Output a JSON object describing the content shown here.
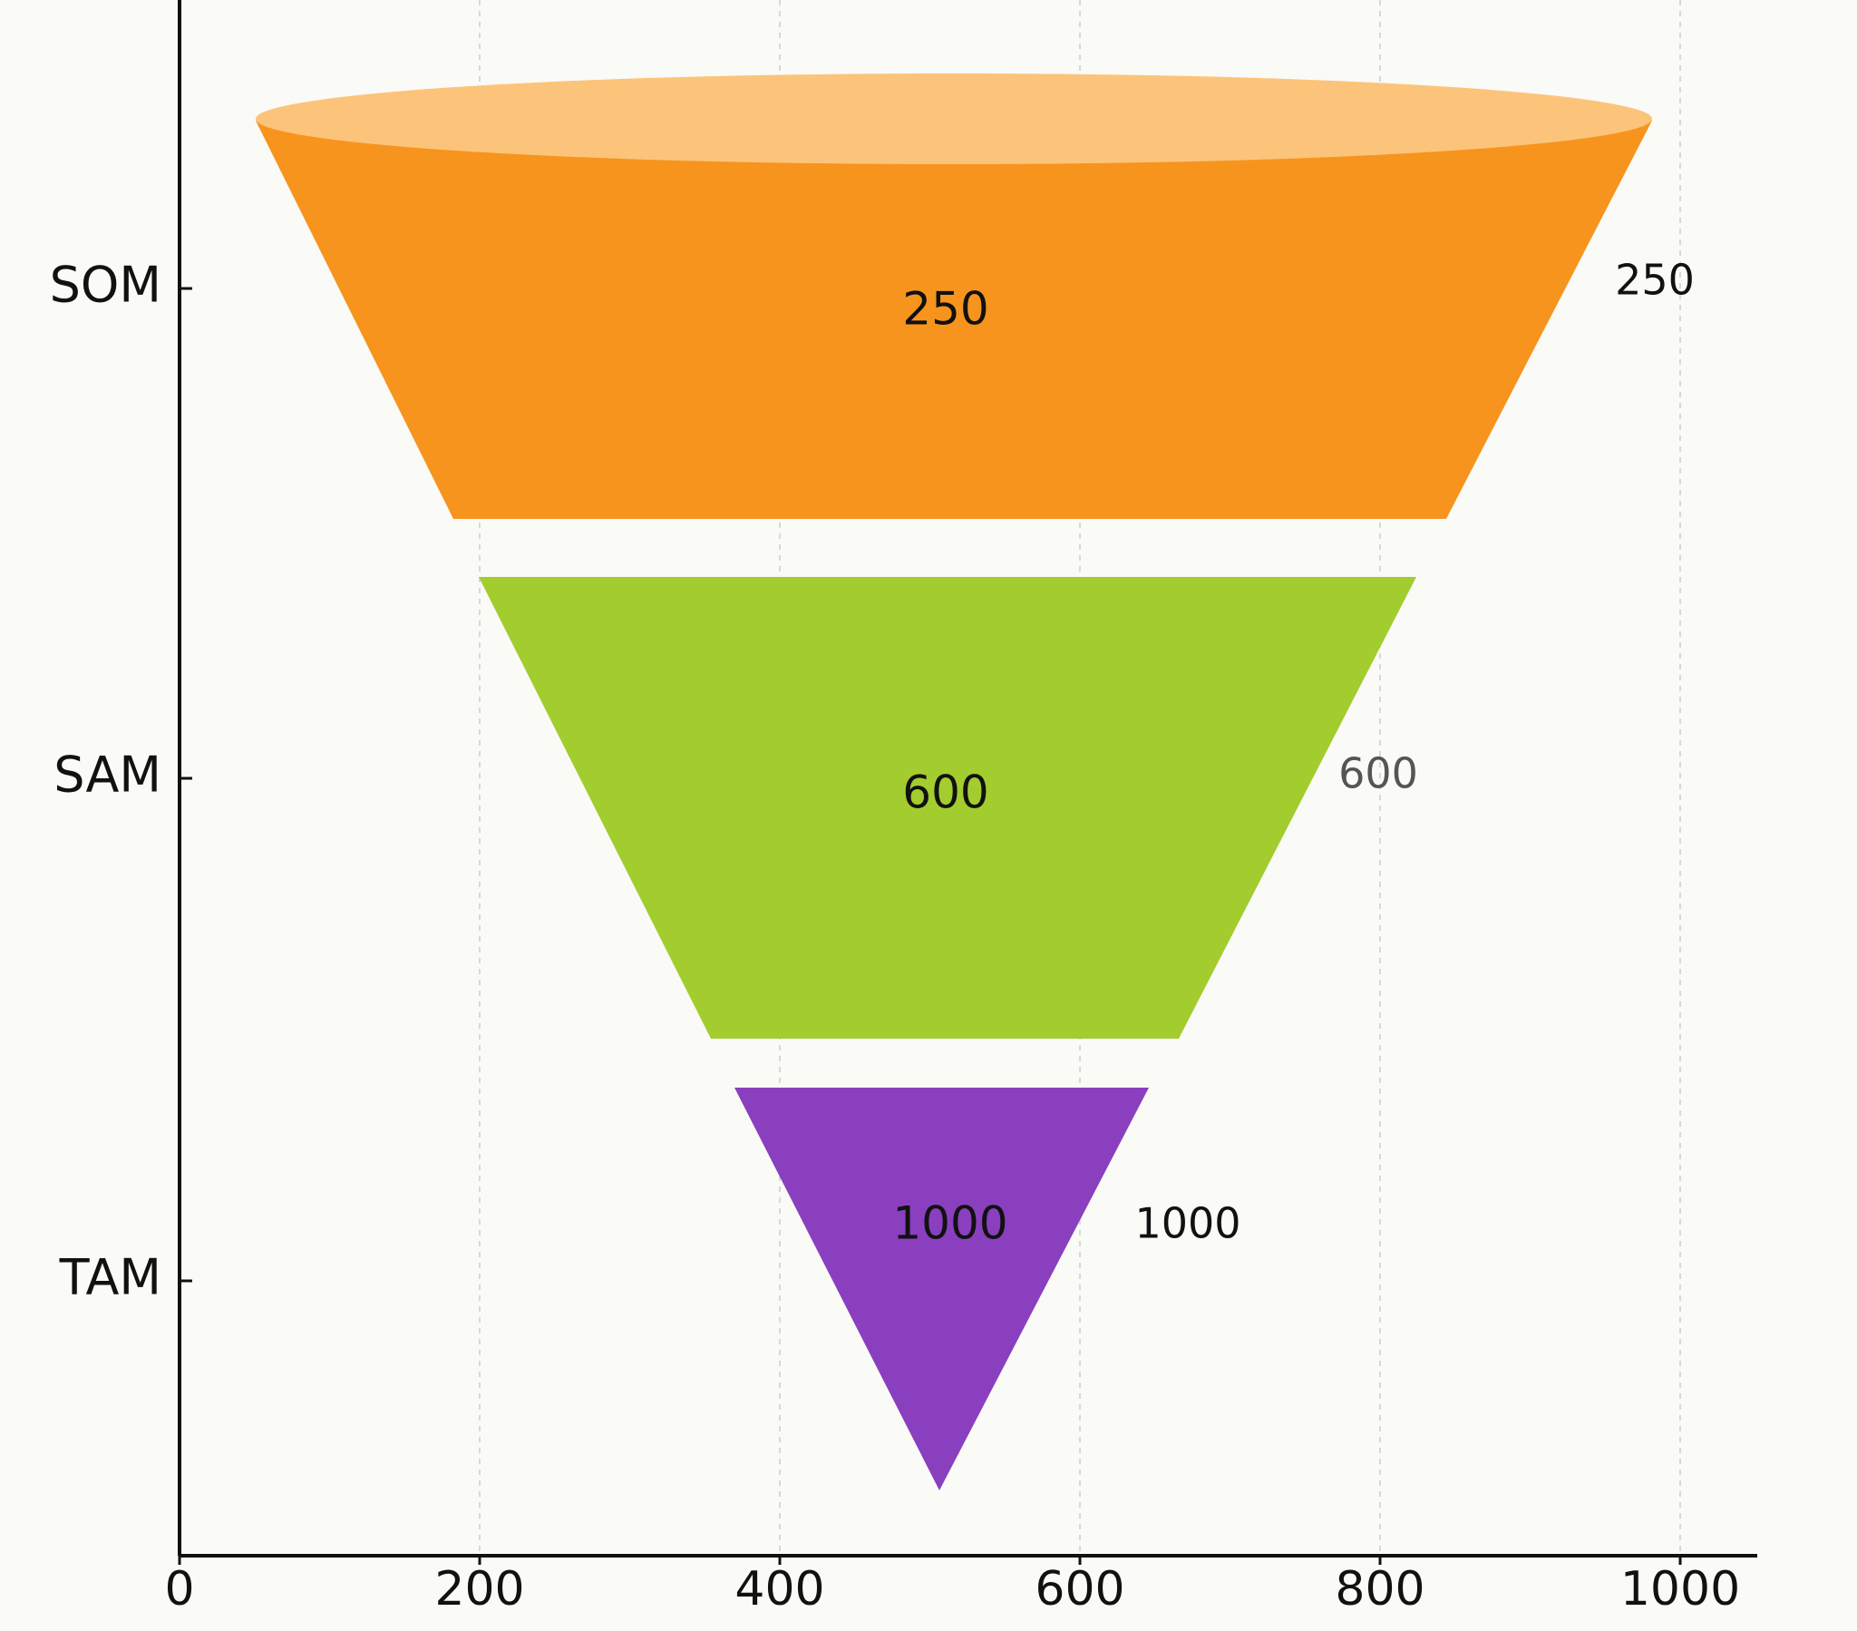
{
  "chart_data": {
    "type": "funnel",
    "categories": [
      "SOM",
      "SAM",
      "TAM"
    ],
    "series": [
      {
        "values": [
          250,
          600,
          1000
        ],
        "colors": [
          "#f7941d",
          "#a3cc2e",
          "#8a3fbf"
        ]
      }
    ],
    "xlim": [
      0,
      1000
    ],
    "xticks": [
      0,
      200,
      400,
      600,
      800,
      1000
    ],
    "grid": true
  }
}
